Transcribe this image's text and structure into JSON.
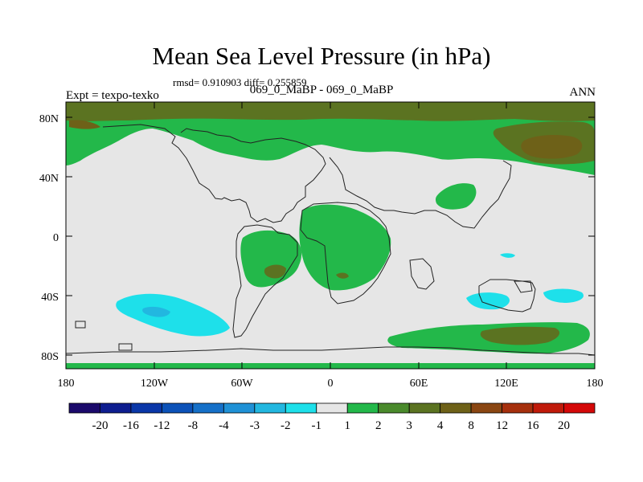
{
  "title": "Mean Sea Level Pressure (in hPa)",
  "stats_line": "rmsd= 0.910903 diff= 0.255859",
  "subtitle": "069_0_MaBP - 069_0_MaBP",
  "left_label": "Expt = texpo-texko",
  "right_label": "ANN",
  "lat_labels": [
    "80N",
    "40N",
    "0",
    "40S",
    "80S"
  ],
  "lon_labels": [
    "180",
    "120W",
    "60W",
    "0",
    "60E",
    "120E",
    "180"
  ],
  "colorbar": {
    "labels": [
      "-20",
      "-16",
      "-12",
      "-8",
      "-4",
      "-3",
      "-2",
      "-1",
      "1",
      "2",
      "3",
      "4",
      "8",
      "12",
      "16",
      "20"
    ],
    "colors": [
      "#1b0a6b",
      "#0e1d8f",
      "#0a37a8",
      "#0c52b8",
      "#1570c8",
      "#1f91d6",
      "#22b7e0",
      "#1ee0ea",
      "#e6e6e6",
      "#23b84a",
      "#4a8a2c",
      "#5b7321",
      "#6e6118",
      "#8a4612",
      "#a6300d",
      "#c01a0a",
      "#d40808"
    ]
  },
  "palette": {
    "neutral": "#e6e6e6",
    "green": "#23b84a",
    "olive": "#5b7321",
    "brown": "#6e6118",
    "cyan": "#1ee0ea",
    "light_blue": "#22b7e0"
  }
}
